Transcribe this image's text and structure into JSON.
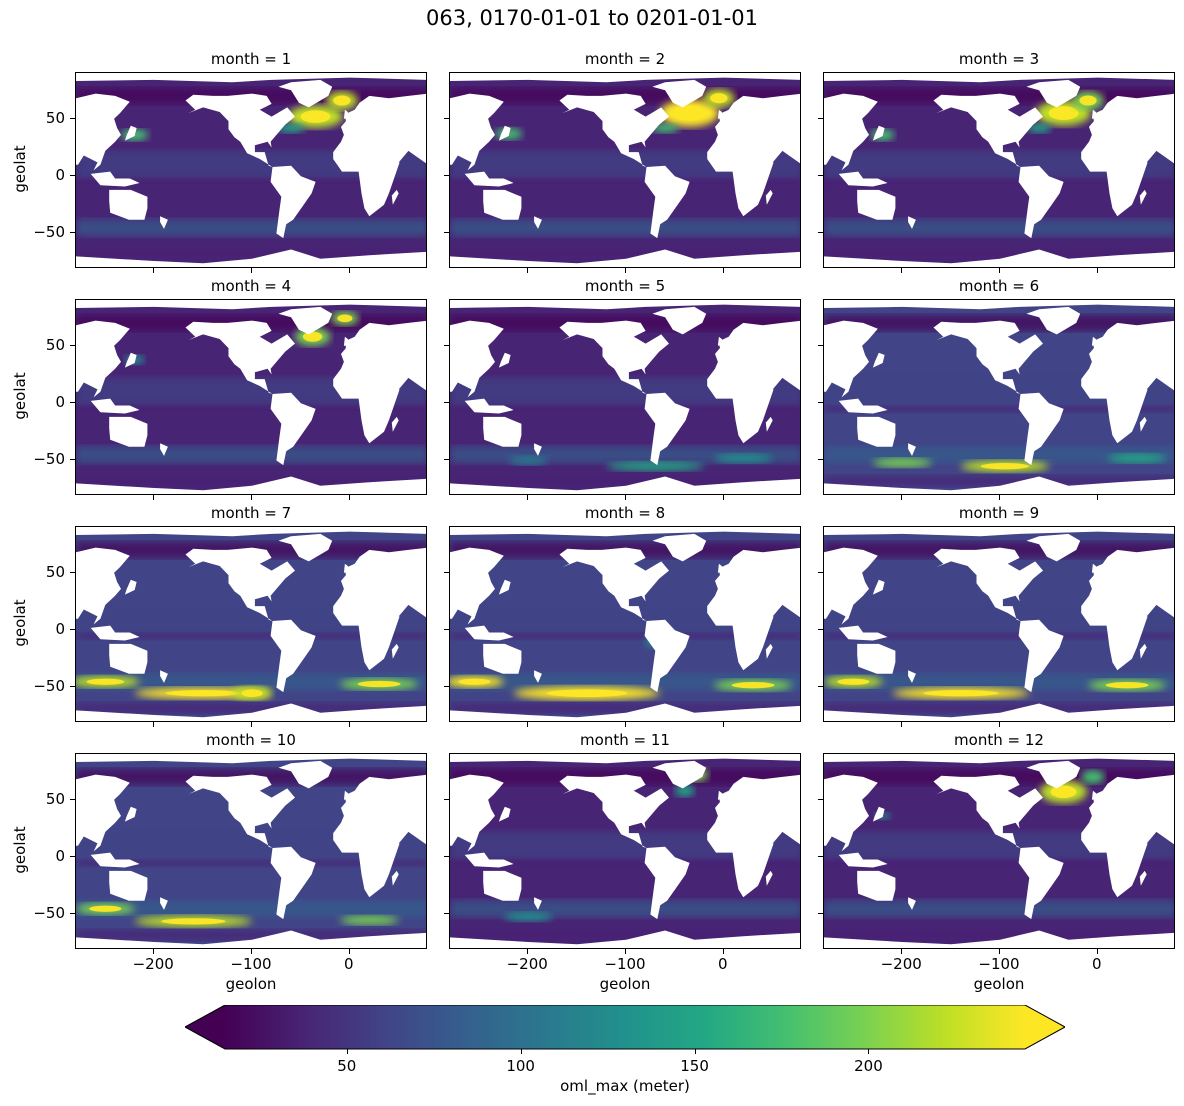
{
  "suptitle": "063, 0170-01-01 to 0201-01-01",
  "chart_data": {
    "type": "heatmap",
    "title": "063, 0170-01-01 to 0201-01-01",
    "variable": "oml_max",
    "units": "meter",
    "xlabel": "geolon",
    "ylabel": "geolat",
    "xlim": [
      -280,
      80
    ],
    "ylim": [
      -81,
      90
    ],
    "xticks": [
      -200,
      -100,
      0
    ],
    "xtick_labels": [
      "−200",
      "−100",
      "0"
    ],
    "yticks": [
      50,
      0,
      -50
    ],
    "ytick_labels": [
      "50",
      "0",
      "−50"
    ],
    "colormap": "viridis",
    "colorbar": {
      "label": "oml_max (meter)",
      "range": [
        15,
        245
      ],
      "ticks": [
        50,
        100,
        150,
        200
      ],
      "tick_labels": [
        "50",
        "100",
        "150",
        "200"
      ],
      "extend": "both"
    },
    "panels": [
      {
        "title": "month = 1",
        "month": 1,
        "mean_background": 45,
        "high_regions": [
          "North Atlantic",
          "Kuroshio"
        ]
      },
      {
        "title": "month = 2",
        "month": 2,
        "mean_background": 45,
        "high_regions": [
          "North Atlantic",
          "Kuroshio"
        ]
      },
      {
        "title": "month = 3",
        "month": 3,
        "mean_background": 45,
        "high_regions": [
          "North Atlantic",
          "Kuroshio"
        ]
      },
      {
        "title": "month = 4",
        "month": 4,
        "mean_background": 45,
        "high_regions": [
          "Labrador/Nordic Seas"
        ]
      },
      {
        "title": "month = 5",
        "month": 5,
        "mean_background": 45,
        "high_regions": [
          "Southern Ocean (weak)"
        ]
      },
      {
        "title": "month = 6",
        "month": 6,
        "mean_background": 50,
        "high_regions": [
          "Southern Ocean"
        ]
      },
      {
        "title": "month = 7",
        "month": 7,
        "mean_background": 55,
        "high_regions": [
          "Southern Ocean"
        ]
      },
      {
        "title": "month = 8",
        "month": 8,
        "mean_background": 55,
        "high_regions": [
          "Southern Ocean"
        ]
      },
      {
        "title": "month = 9",
        "month": 9,
        "mean_background": 55,
        "high_regions": [
          "Southern Ocean"
        ]
      },
      {
        "title": "month = 10",
        "month": 10,
        "mean_background": 50,
        "high_regions": [
          "Southern Ocean"
        ]
      },
      {
        "title": "month = 11",
        "month": 11,
        "mean_background": 45,
        "high_regions": [
          "North Atlantic (weak)"
        ]
      },
      {
        "title": "month = 12",
        "month": 12,
        "mean_background": 45,
        "high_regions": [
          "North Atlantic"
        ]
      }
    ]
  }
}
